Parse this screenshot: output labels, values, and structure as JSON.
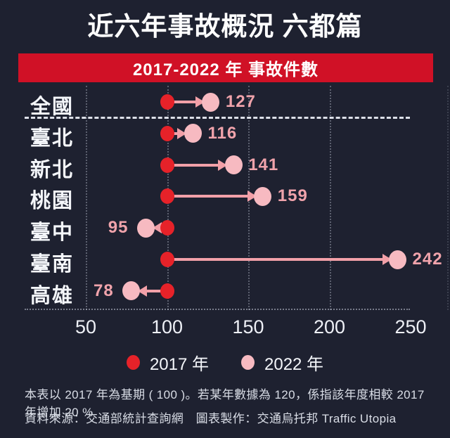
{
  "title": "近六年事故概況 六都篇",
  "banner": {
    "label": "2017-2022 年 事故件數",
    "bg_color": "#d01126"
  },
  "chart_data": {
    "type": "dumbbell-arrow",
    "title": "2017-2022 年 事故件數",
    "categories": [
      "全國",
      "臺北",
      "新北",
      "桃園",
      "臺中",
      "臺南",
      "高雄"
    ],
    "series": [
      {
        "name": "2017 年",
        "values": [
          100,
          100,
          100,
          100,
          100,
          100,
          100
        ],
        "color": "#e62229"
      },
      {
        "name": "2022 年",
        "values": [
          127,
          116,
          141,
          159,
          95,
          242,
          78
        ],
        "color": "#f7bac1"
      }
    ],
    "baseline_value": 100,
    "x_ticks": [
      50,
      100,
      150,
      200,
      250
    ],
    "xlim": [
      35,
      273
    ],
    "separator_after_category": "全國",
    "grid": "dotted-vertical",
    "arrow_color": "#f2a0a8",
    "value_label_color": "#f0a3ab",
    "legend_position": "bottom"
  },
  "legend": {
    "items": [
      {
        "label": "2017 年",
        "color": "#e62229"
      },
      {
        "label": "2022 年",
        "color": "#f7bac1"
      }
    ]
  },
  "footnote_line1": "本表以 2017 年為基期 ( 100 )。若某年數據為 120，係指該年度相較 2017 年增加 20 %",
  "footnote_line2": "資料來源：交通部統計查詢網　圖表製作：交通烏托邦 Traffic Utopia",
  "colors": {
    "background": "#1e2130",
    "banner_red": "#d01126",
    "dot_2017_red": "#e62229",
    "dot_2022_pink": "#f7bac1",
    "arrow_pink": "#f2a0a8",
    "value_label_pink": "#f0a3ab",
    "text_white": "#f2f4f8"
  }
}
